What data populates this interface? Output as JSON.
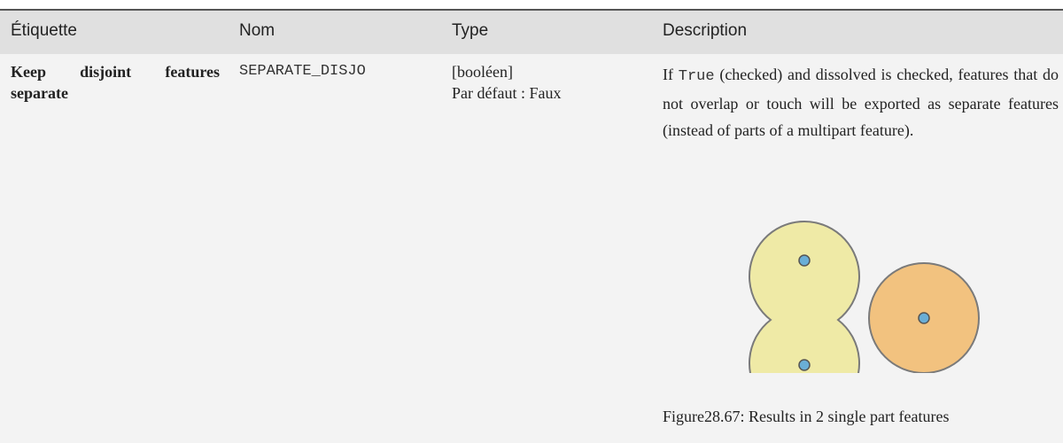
{
  "table": {
    "headers": [
      "Étiquette",
      "Nom",
      "Type",
      "Description"
    ],
    "rows": [
      {
        "label": "Keep disjoint features separate",
        "name": "SEPARATE_DISJO",
        "type": "[booléen]",
        "default": "Par défaut : Faux",
        "description": {
          "before": "If ",
          "code": "True",
          "after": " (checked) and dissolved is checked, features that do not overlap or touch will be exported as separate features (instead of parts of a multipart feature)."
        },
        "figure_caption": {
          "number": "Figure28.67:",
          "text": "Results in 2 single part features"
        }
      }
    ]
  }
}
